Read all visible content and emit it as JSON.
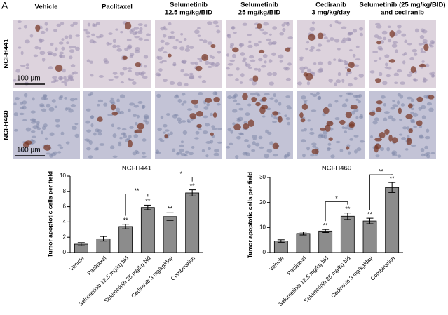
{
  "panel_label": "A",
  "column_headers": [
    [
      "Vehicle"
    ],
    [
      "Paclitaxel"
    ],
    [
      "Selumetinib",
      "12.5 mg/kg/BID"
    ],
    [
      "Selumetinib",
      "25 mg/kg/BID"
    ],
    [
      "Cediranib",
      "3 mg/kg/day"
    ],
    [
      "Selumetinib (25 mg/kg/BID)",
      "and cediranib"
    ]
  ],
  "row_labels": [
    "NCI-H441",
    "NCI-H460"
  ],
  "scale_bar": "100 µm",
  "chart_data": [
    {
      "type": "bar",
      "title": "NCI-H441",
      "y_label": "Tumor apoptotic cells per field",
      "categories": [
        "Vehicle",
        "Paclitaxel",
        "Selumetinib 12.5 mg/kg bid",
        "Selumetinib 25 mg/kg bid",
        "Cediranib 3 mg/kg/day",
        "Combination"
      ],
      "values": [
        1.1,
        1.8,
        3.4,
        5.9,
        4.7,
        7.8
      ],
      "errors": [
        0.2,
        0.3,
        0.3,
        0.3,
        0.5,
        0.4
      ],
      "significance": [
        null,
        null,
        "**",
        "**",
        "**",
        "**"
      ],
      "comparisons": [
        {
          "between": [
            "Selumetinib 12.5 mg/kg bid",
            "Selumetinib 25 mg/kg bid"
          ],
          "label": "**"
        },
        {
          "between": [
            "Cediranib 3 mg/kg/day",
            "Combination"
          ],
          "label": "*"
        }
      ],
      "color": "#8c8c8c",
      "ylim": [
        0,
        10
      ],
      "yticks": [
        0,
        2,
        4,
        6,
        8,
        10
      ]
    },
    {
      "type": "bar",
      "title": "NCI-H460",
      "y_label": "Tumor apoptotic cells per field",
      "categories": [
        "Vehicle",
        "Paclitaxel",
        "Selumetinib 12.5 mg/kg bid",
        "Selumetinib 25 mg/kg bid",
        "Cediranib 3 mg/kg/day",
        "Combination"
      ],
      "values": [
        4.6,
        7.6,
        8.6,
        14.5,
        12.6,
        26
      ],
      "errors": [
        0.5,
        0.6,
        0.6,
        1.3,
        1.1,
        2
      ],
      "significance": [
        null,
        null,
        "**",
        "**",
        "**",
        "**"
      ],
      "comparisons": [
        {
          "between": [
            "Selumetinib 12.5 mg/kg bid",
            "Selumetinib 25 mg/kg bid"
          ],
          "label": "*"
        },
        {
          "between": [
            "Cediranib 3 mg/kg/day",
            "Combination"
          ],
          "label": "**"
        }
      ],
      "color": "#8c8c8c",
      "ylim": [
        0,
        30
      ],
      "yticks": [
        0,
        10,
        20,
        30
      ]
    }
  ]
}
